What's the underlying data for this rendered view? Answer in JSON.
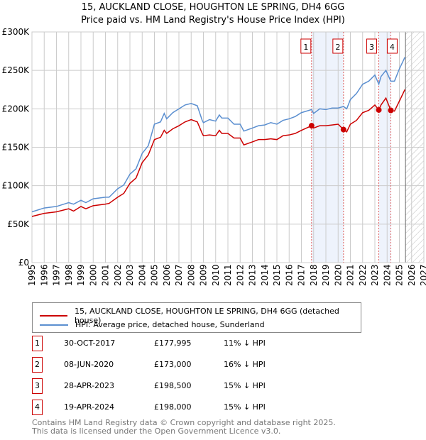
{
  "chart_data": {
    "type": "line",
    "title": "15, AUCKLAND CLOSE, HOUGHTON LE SPRING, DH4 6GG",
    "subtitle": "Price paid vs. HM Land Registry's House Price Index (HPI)",
    "xlim": [
      1995,
      2027
    ],
    "ylim": [
      0,
      300000
    ],
    "x_ticks": [
      "1995",
      "1996",
      "1997",
      "1998",
      "1999",
      "2000",
      "2001",
      "2002",
      "2003",
      "2004",
      "2005",
      "2006",
      "2007",
      "2008",
      "2009",
      "2010",
      "2011",
      "2012",
      "2013",
      "2014",
      "2015",
      "2016",
      "2017",
      "2018",
      "2019",
      "2020",
      "2021",
      "2022",
      "2023",
      "2024",
      "2025",
      "2026",
      "2027"
    ],
    "y_ticks": [
      {
        "v": 0,
        "label": "£0"
      },
      {
        "v": 50000,
        "label": "£50K"
      },
      {
        "v": 100000,
        "label": "£100K"
      },
      {
        "v": 150000,
        "label": "£150K"
      },
      {
        "v": 200000,
        "label": "£200K"
      },
      {
        "v": 250000,
        "label": "£250K"
      },
      {
        "v": 300000,
        "label": "£300K"
      }
    ],
    "grid": true,
    "forecast_start": 2025.5,
    "series": [
      {
        "name": "15, AUCKLAND CLOSE, HOUGHTON LE SPRING, DH4 6GG (detached house)",
        "color": "#cc0000",
        "x": [
          1995,
          1996,
          1997,
          1998,
          1998.4,
          1999,
          1999.4,
          2000,
          2001,
          2001.3,
          2002,
          2002.5,
          2003,
          2003.5,
          2004,
          2004.5,
          2005,
          2005.5,
          2005.8,
          2006,
          2006.5,
          2007,
          2007.5,
          2008,
          2008.5,
          2008.9,
          2009,
          2009.5,
          2010,
          2010.3,
          2010.5,
          2011,
          2011.5,
          2012,
          2012.3,
          2013,
          2013.5,
          2014,
          2014.5,
          2015,
          2015.5,
          2016,
          2016.5,
          2017,
          2017.83,
          2018,
          2018.5,
          2019,
          2019.5,
          2020,
          2020.44,
          2020.7,
          2021,
          2021.5,
          2022,
          2022.5,
          2023,
          2023.32,
          2023.5,
          2023.9,
          2024.3,
          2024.6,
          2025,
          2025.3,
          2025.45
        ],
        "y": [
          60000,
          64000,
          66000,
          70000,
          67000,
          73000,
          70000,
          74000,
          76000,
          77000,
          85000,
          90000,
          103000,
          110000,
          130000,
          140000,
          160000,
          163000,
          172000,
          168000,
          174000,
          178000,
          183000,
          186000,
          183000,
          168000,
          165000,
          166000,
          165000,
          172000,
          168000,
          168000,
          162000,
          162000,
          153000,
          157000,
          160000,
          160000,
          161000,
          160000,
          165000,
          166000,
          168000,
          172000,
          177995,
          175000,
          178000,
          178000,
          179000,
          180000,
          173000,
          170000,
          180000,
          185000,
          195000,
          198000,
          205000,
          198500,
          205000,
          214000,
          198000,
          197000,
          210000,
          220000,
          225000
        ]
      },
      {
        "name": "HPI: Average price, detached house, Sunderland",
        "color": "#5b8fd0",
        "x": [
          1995,
          1996,
          1997,
          1998,
          1998.4,
          1999,
          1999.4,
          2000,
          2001,
          2001.3,
          2002,
          2002.5,
          2003,
          2003.5,
          2004,
          2004.5,
          2005,
          2005.5,
          2005.8,
          2006,
          2006.5,
          2007,
          2007.5,
          2008,
          2008.5,
          2008.9,
          2009,
          2009.5,
          2010,
          2010.3,
          2010.5,
          2011,
          2011.5,
          2012,
          2012.3,
          2013,
          2013.5,
          2014,
          2014.5,
          2015,
          2015.5,
          2016,
          2016.5,
          2017,
          2017.83,
          2018,
          2018.5,
          2019,
          2019.5,
          2020,
          2020.44,
          2020.7,
          2021,
          2021.5,
          2022,
          2022.5,
          2023,
          2023.32,
          2023.5,
          2023.9,
          2024.3,
          2024.6,
          2025,
          2025.3,
          2025.45
        ],
        "y": [
          66000,
          71000,
          73000,
          78000,
          76000,
          81000,
          78000,
          83000,
          85000,
          85000,
          96000,
          101000,
          115000,
          122000,
          142000,
          152000,
          180000,
          183000,
          194000,
          187000,
          195000,
          200000,
          205000,
          207000,
          204000,
          185000,
          182000,
          186000,
          184000,
          192000,
          188000,
          188000,
          180000,
          180000,
          171000,
          175000,
          178000,
          179000,
          182000,
          180000,
          185000,
          187000,
          190000,
          195000,
          199000,
          194000,
          200000,
          199000,
          201000,
          201000,
          203000,
          200000,
          212000,
          220000,
          232000,
          236000,
          244000,
          232000,
          242000,
          250000,
          236000,
          236000,
          252000,
          262000,
          267000
        ]
      }
    ],
    "sales": [
      {
        "id": "1",
        "x": 2017.83,
        "date": "30-OCT-2017",
        "price": 177995,
        "price_label": "£177,995",
        "hpi": "11% ↓ HPI"
      },
      {
        "id": "2",
        "x": 2020.44,
        "date": "08-JUN-2020",
        "price": 173000,
        "price_label": "£173,000",
        "hpi": "16% ↓ HPI"
      },
      {
        "id": "3",
        "x": 2023.32,
        "date": "28-APR-2023",
        "price": 198500,
        "price_label": "£198,500",
        "hpi": "15% ↓ HPI"
      },
      {
        "id": "4",
        "x": 2024.3,
        "date": "19-APR-2024",
        "price": 198000,
        "price_label": "£198,000",
        "hpi": "15% ↓ HPI"
      }
    ],
    "footer": [
      "Contains HM Land Registry data © Crown copyright and database right 2025.",
      "This data is licensed under the Open Government Licence v3.0."
    ]
  }
}
